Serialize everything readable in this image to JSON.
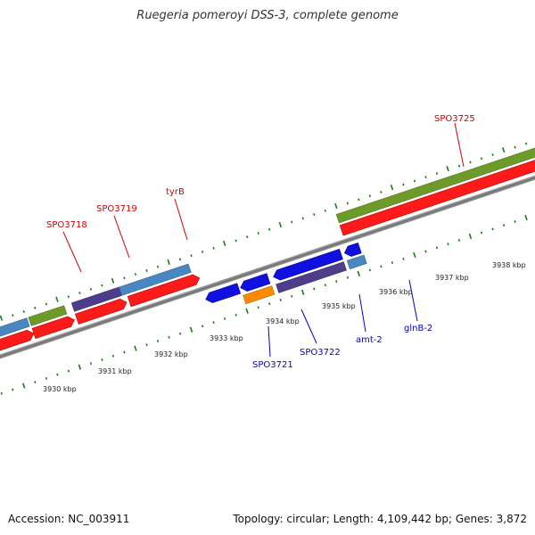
{
  "title": "Ruegeria pomeroyi DSS-3, complete genome",
  "footer": {
    "accession": "Accession: NC_003911",
    "summary": "Topology: circular; Length: 4,109,442 bp; Genes: 3,872"
  },
  "colors": {
    "forward_cds": "#ff1a1a",
    "backbone": "#7a7a7a",
    "tick": "#1a7a1a",
    "gene_steelblue": "#4a87c0",
    "gene_olive": "#6e9a2a",
    "gene_purple": "#4d3d8a",
    "gene_blue": "#1010e0",
    "gene_orange": "#ff8a00",
    "label_red": "#d40000",
    "label_blue": "#0000cc"
  },
  "scale_labels": [
    "3930 kbp",
    "3931 kbp",
    "3932 kbp",
    "3933 kbp",
    "3934 kbp",
    "3935 kbp",
    "3936 kbp",
    "3937 kbp",
    "3938 kbp"
  ],
  "gene_labels": {
    "spo3718": "SPO3718",
    "spo3719": "SPO3719",
    "tyrb": "tyrB",
    "spo3725": "SPO3725",
    "spo3721": "SPO3721",
    "spo3722": "SPO3722",
    "amt2": "amt-2",
    "glnb2": "glnB-2"
  }
}
